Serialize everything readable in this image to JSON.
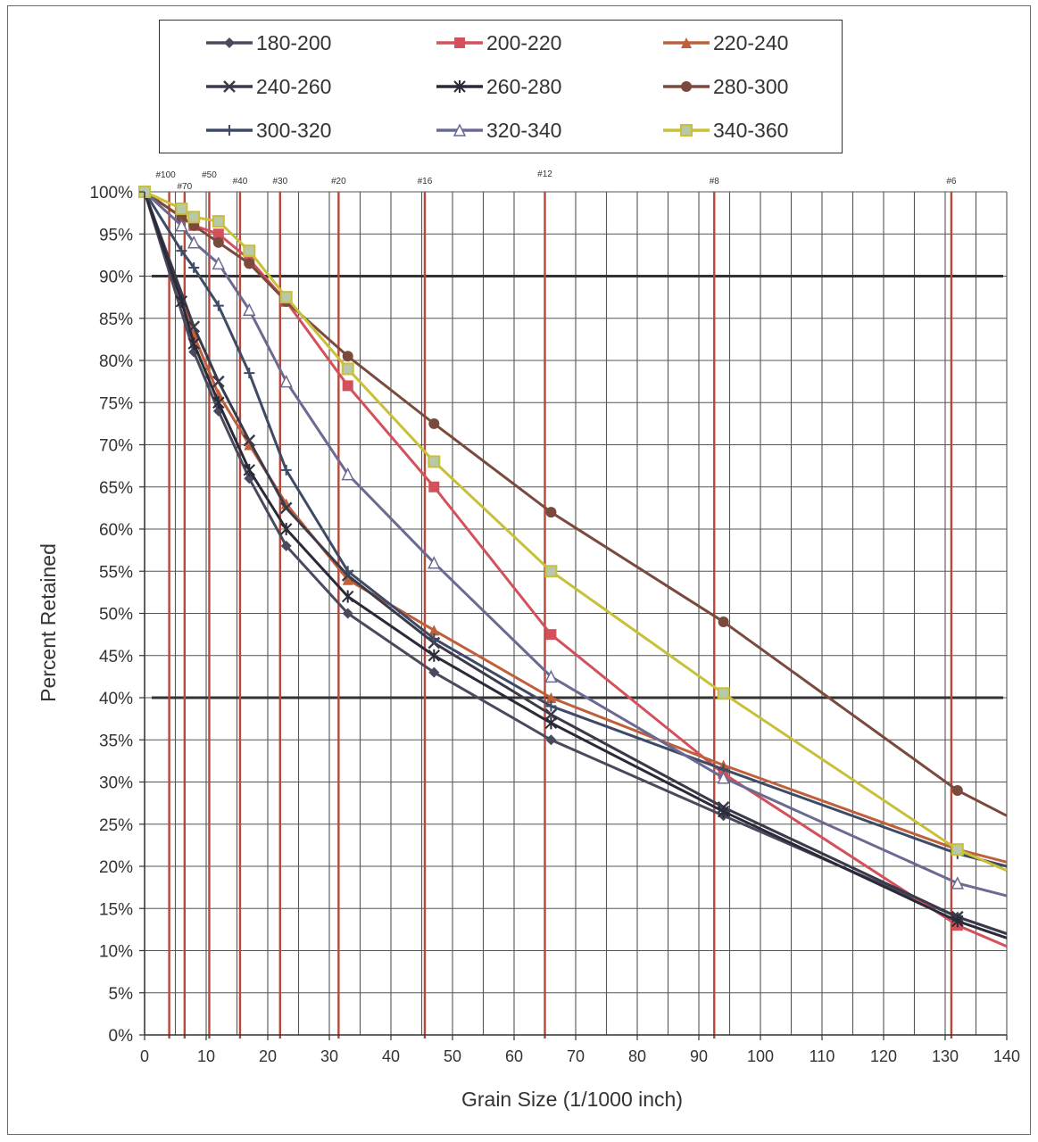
{
  "chart_data": {
    "type": "line",
    "title": "",
    "xlabel": "Grain Size (1/1000 inch)",
    "ylabel": "Percent Retained",
    "xlim": [
      0,
      140
    ],
    "ylim": [
      0,
      100
    ],
    "x_ticks": [
      "0",
      "10",
      "20",
      "30",
      "40",
      "50",
      "60",
      "70",
      "80",
      "90",
      "100",
      "110",
      "120",
      "130",
      "140"
    ],
    "y_ticks": [
      "0%",
      "5%",
      "10%",
      "15%",
      "20%",
      "25%",
      "30%",
      "35%",
      "40%",
      "45%",
      "50%",
      "55%",
      "60%",
      "65%",
      "70%",
      "75%",
      "80%",
      "85%",
      "90%",
      "95%",
      "100%"
    ],
    "grid": true,
    "legend_position": "top",
    "reference_lines": [
      {
        "label": "#100",
        "x": 4
      },
      {
        "label": "#70",
        "x": 6.5
      },
      {
        "label": "#50",
        "x": 10.5
      },
      {
        "label": "#40",
        "x": 15.5
      },
      {
        "label": "#30",
        "x": 22
      },
      {
        "label": "#20",
        "x": 31.5
      },
      {
        "label": "#16",
        "x": 45.5
      },
      {
        "label": "#12",
        "x": 65
      },
      {
        "label": "#8",
        "x": 92.5
      },
      {
        "label": "#6",
        "x": 131
      }
    ],
    "threshold_lines": [
      90,
      40
    ],
    "series": [
      {
        "name": "180-200",
        "color": "#4a4a5e",
        "marker": "diamond",
        "x": [
          0,
          8,
          12,
          17,
          23,
          33,
          47,
          66,
          94,
          132,
          140
        ],
        "y": [
          100,
          81,
          74,
          66,
          58,
          50,
          43,
          35,
          26,
          14,
          12
        ]
      },
      {
        "name": "200-220",
        "color": "#d4505a",
        "marker": "square",
        "x": [
          0,
          6,
          8,
          12,
          17,
          23,
          33,
          47,
          66,
          94,
          132,
          140
        ],
        "y": [
          100,
          97,
          96,
          95,
          92,
          87,
          77,
          65,
          47.5,
          31,
          13,
          10.5
        ]
      },
      {
        "name": "220-240",
        "color": "#c0603a",
        "marker": "triangle",
        "x": [
          0,
          8,
          12,
          17,
          23,
          33,
          47,
          66,
          94,
          132,
          140
        ],
        "y": [
          100,
          83,
          76,
          70,
          63,
          54,
          48,
          40,
          32,
          22,
          20.5
        ]
      },
      {
        "name": "240-260",
        "color": "#3a3a4a",
        "marker": "x",
        "x": [
          0,
          8,
          12,
          17,
          23,
          33,
          47,
          66,
          94,
          132,
          140
        ],
        "y": [
          100,
          84,
          77.5,
          70.5,
          62.5,
          54.5,
          46.5,
          38,
          27,
          14,
          12
        ]
      },
      {
        "name": "260-280",
        "color": "#2a2a38",
        "marker": "star",
        "x": [
          0,
          6,
          8,
          12,
          17,
          23,
          33,
          47,
          66,
          94,
          132,
          140
        ],
        "y": [
          100,
          87,
          82,
          75,
          67,
          60,
          52,
          45,
          37,
          26.5,
          13.5,
          11.5
        ]
      },
      {
        "name": "280-300",
        "color": "#7a4a3c",
        "marker": "circle",
        "x": [
          0,
          6,
          8,
          12,
          17,
          23,
          33,
          47,
          66,
          94,
          132,
          140
        ],
        "y": [
          100,
          97,
          96,
          94,
          91.5,
          87,
          80.5,
          72.5,
          62,
          49,
          29,
          26
        ]
      },
      {
        "name": "300-320",
        "color": "#3e4a66",
        "marker": "plus",
        "x": [
          0,
          6,
          8,
          12,
          17,
          23,
          33,
          47,
          66,
          94,
          132,
          140
        ],
        "y": [
          100,
          93,
          91,
          86.5,
          78.5,
          67,
          55,
          47,
          39,
          31.5,
          21.5,
          20
        ]
      },
      {
        "name": "320-340",
        "color": "#6a6a92",
        "marker": "triangle-open",
        "x": [
          0,
          6,
          8,
          12,
          17,
          23,
          33,
          47,
          66,
          94,
          132,
          140
        ],
        "y": [
          100,
          96,
          94,
          91.5,
          86,
          77.5,
          66.5,
          56,
          42.5,
          30.5,
          18,
          16.5
        ]
      },
      {
        "name": "340-360",
        "color": "#c8c038",
        "marker": "square-hatched",
        "x": [
          0,
          6,
          8,
          12,
          17,
          23,
          33,
          47,
          66,
          94,
          132,
          140
        ],
        "y": [
          100,
          98,
          97,
          96.5,
          93,
          87.5,
          79,
          68,
          55,
          40.5,
          22,
          19.5
        ]
      }
    ]
  }
}
